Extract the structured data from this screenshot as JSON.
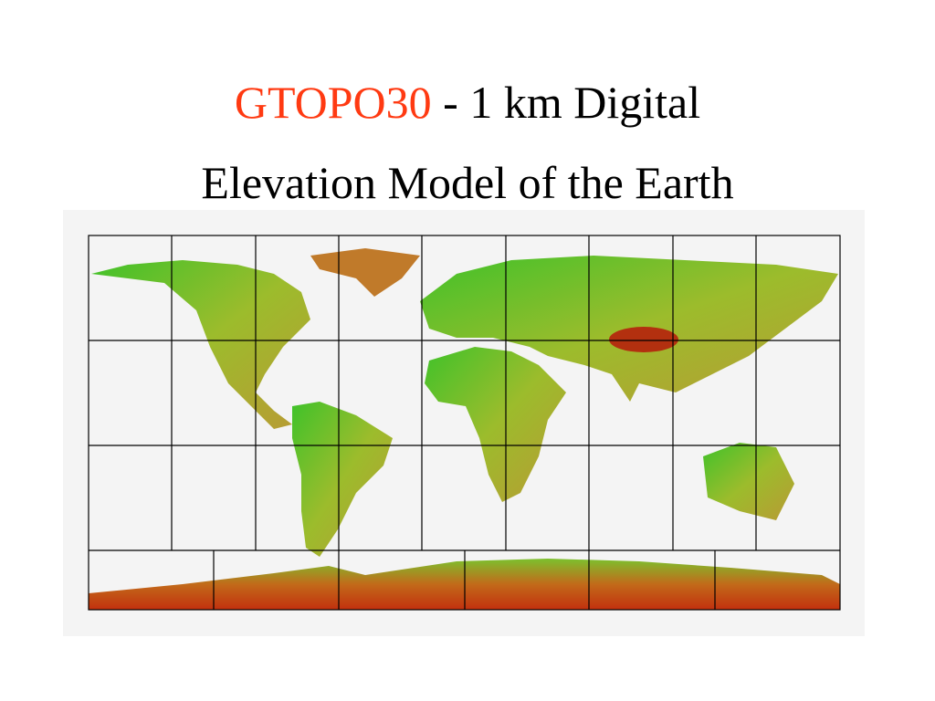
{
  "title": {
    "highlight": "GTOPO30",
    "line1_rest": "- 1 km Digital",
    "line2": "Elevation Model of the Earth"
  }
}
